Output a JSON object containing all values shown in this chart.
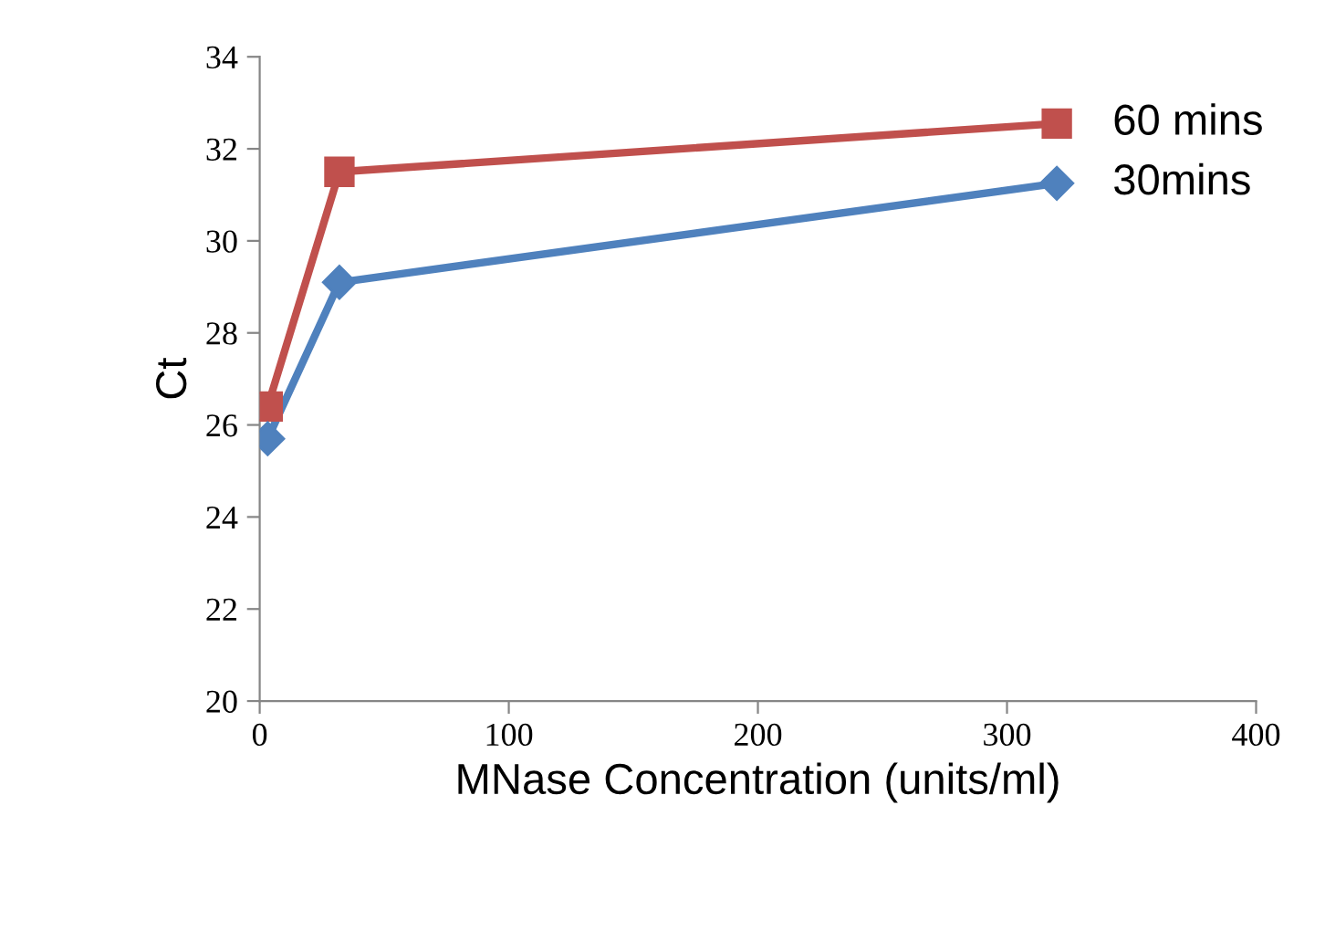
{
  "chart_data": {
    "type": "line",
    "xlabel": "MNase Concentration (units/ml)",
    "ylabel": "Ct",
    "xlim": [
      0,
      400
    ],
    "xticks": [
      0,
      100,
      200,
      300,
      400
    ],
    "ylim": [
      20,
      34
    ],
    "yticks": [
      20,
      22,
      24,
      26,
      28,
      30,
      32,
      34
    ],
    "grid": false,
    "legend": false,
    "line_style": "solid",
    "series": [
      {
        "name": "60 mins",
        "color": "#c0504d",
        "marker": "square",
        "x": [
          3.2,
          32,
          320
        ],
        "values": [
          26.4,
          31.5,
          32.55
        ]
      },
      {
        "name": "30mins",
        "color": "#4f81bd",
        "marker": "diamond",
        "x": [
          3.2,
          32,
          320
        ],
        "values": [
          25.7,
          29.1,
          31.25
        ]
      }
    ]
  }
}
